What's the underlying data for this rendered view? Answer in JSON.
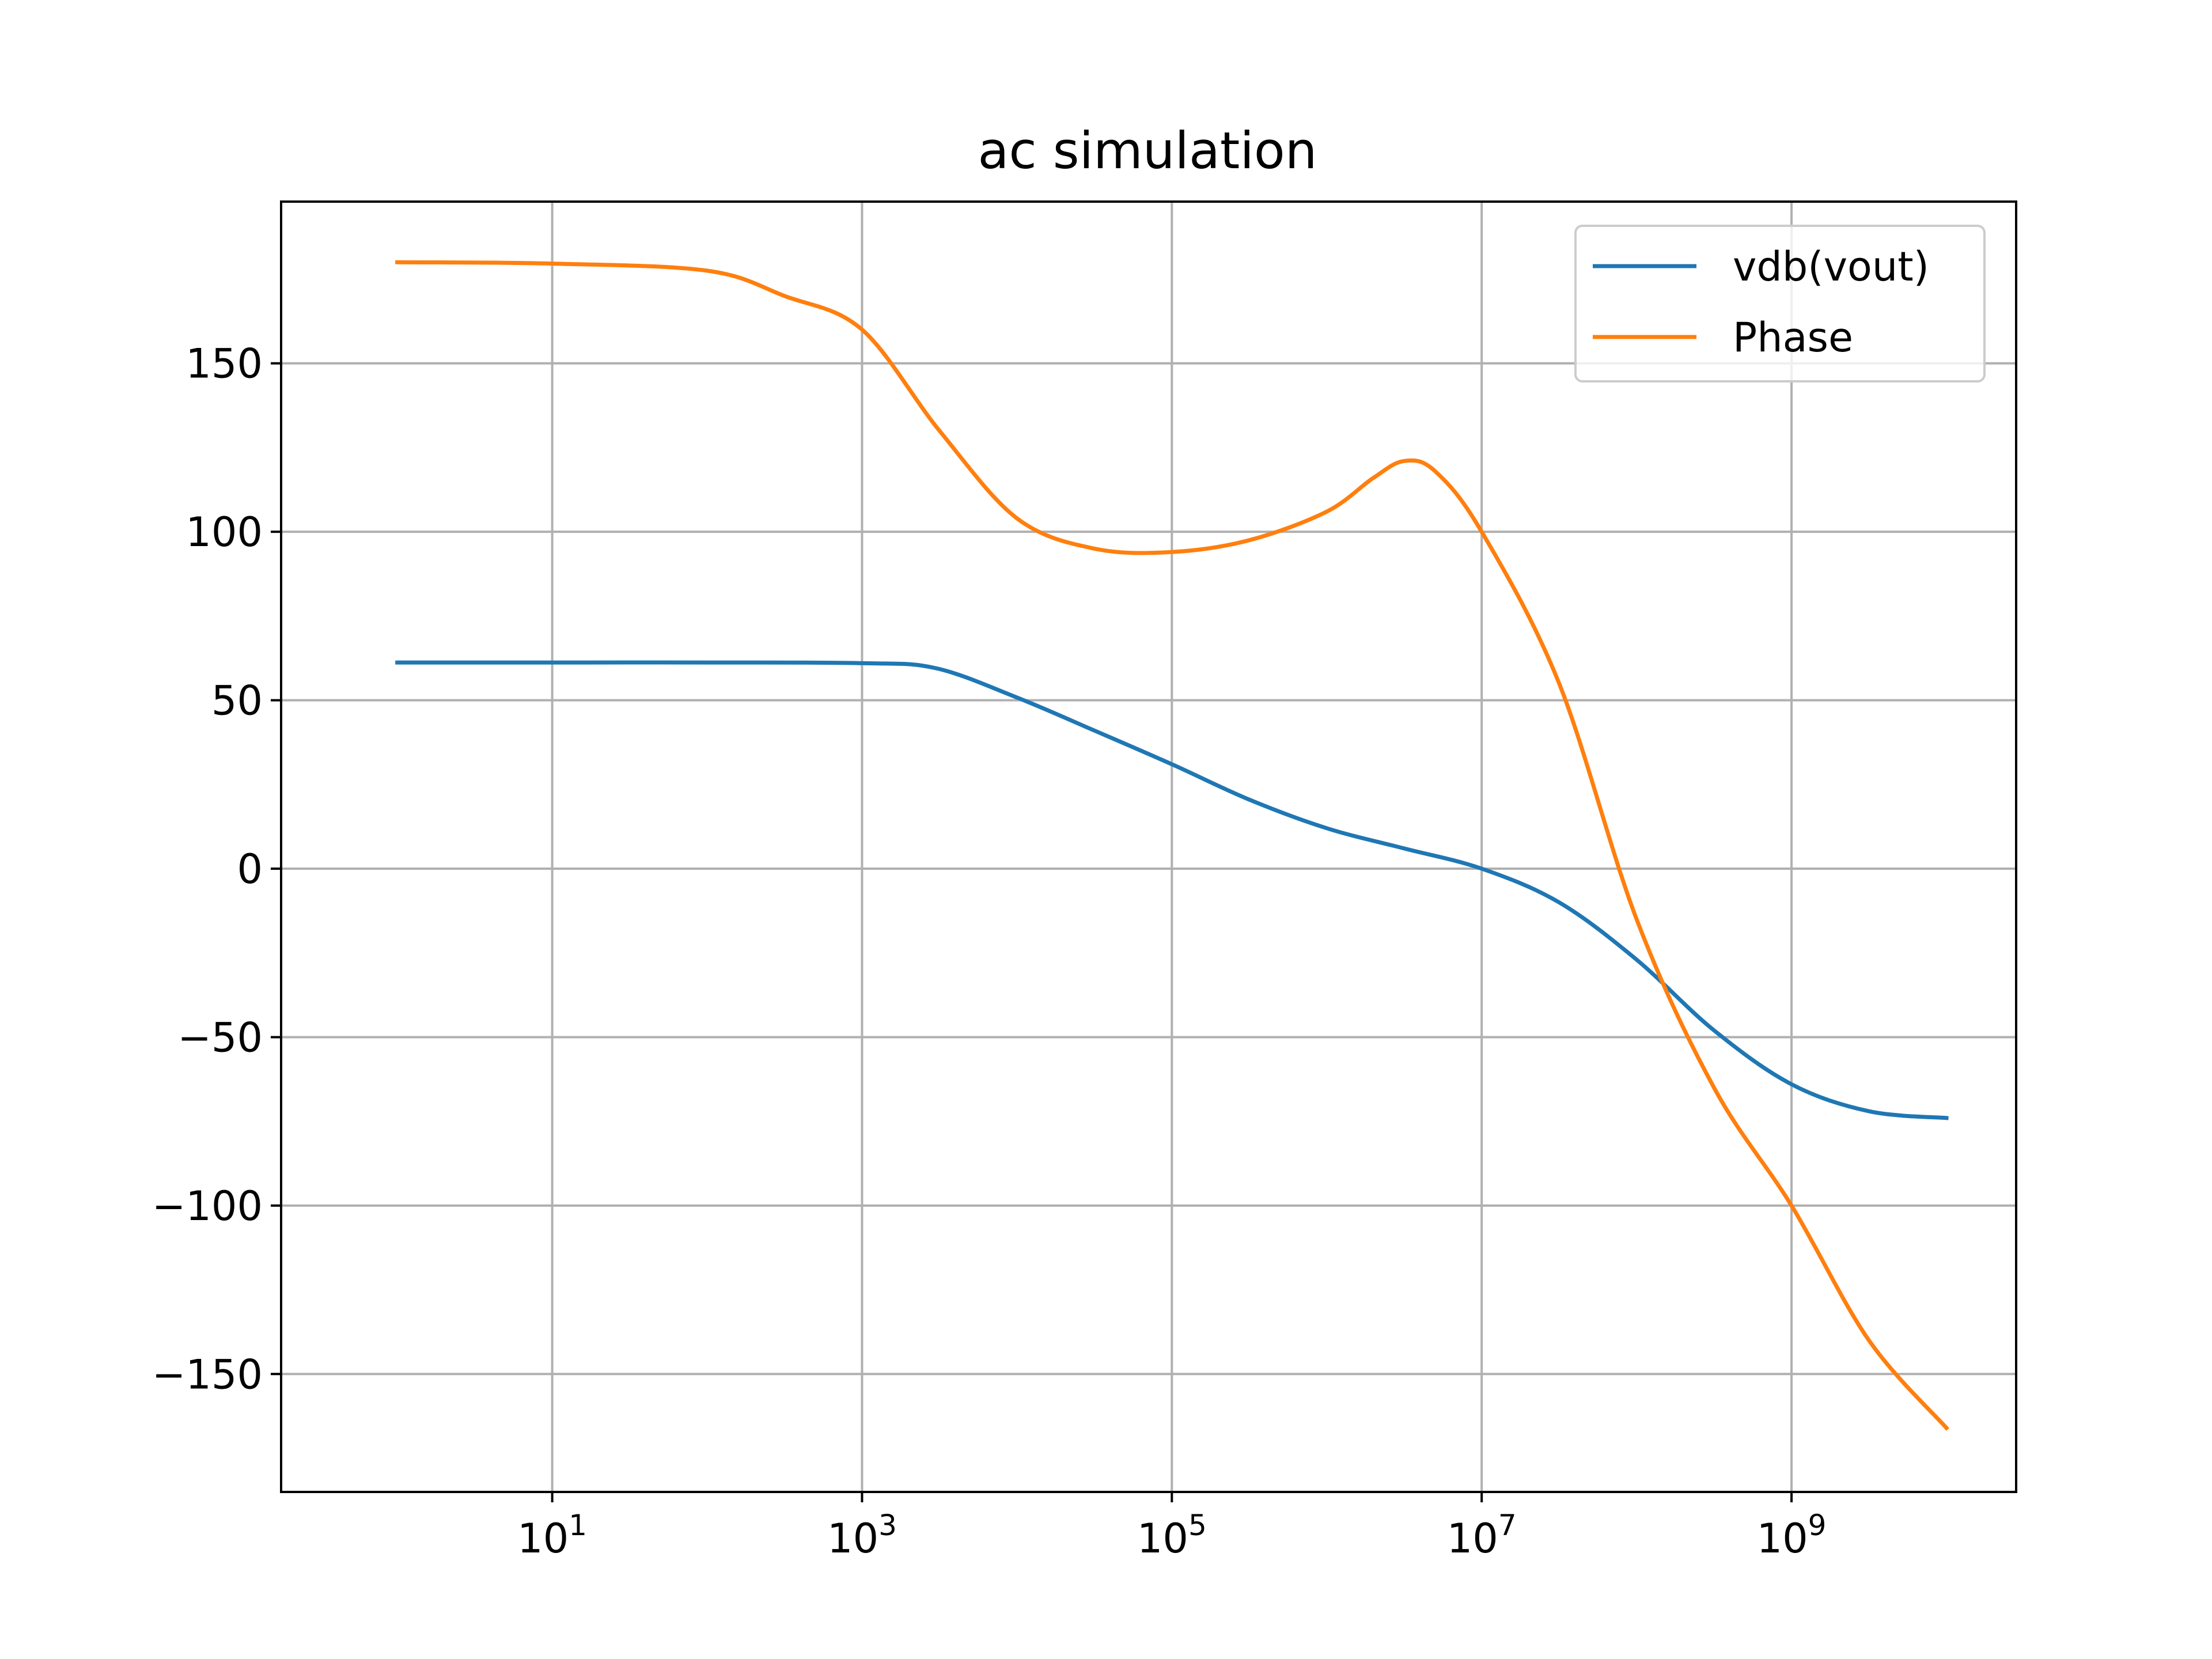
{
  "chart_data": {
    "type": "line",
    "title": "ac simulation",
    "xlabel": "",
    "ylabel": "",
    "x_scale": "log",
    "x_range_log10": [
      -0.75,
      10.45
    ],
    "x_ticks": [
      {
        "base": "10",
        "exp": "1",
        "log10": 1
      },
      {
        "base": "10",
        "exp": "3",
        "log10": 3
      },
      {
        "base": "10",
        "exp": "5",
        "log10": 5
      },
      {
        "base": "10",
        "exp": "7",
        "log10": 7
      },
      {
        "base": "10",
        "exp": "9",
        "log10": 9
      }
    ],
    "ylim": [
      -185,
      198
    ],
    "y_ticks": [
      {
        "value": 150,
        "label": "150"
      },
      {
        "value": 100,
        "label": "100"
      },
      {
        "value": 50,
        "label": "50"
      },
      {
        "value": 0,
        "label": "0"
      },
      {
        "value": -50,
        "label": "−50"
      },
      {
        "value": -100,
        "label": "−100"
      },
      {
        "value": -150,
        "label": "−150"
      }
    ],
    "grid": true,
    "legend_position": "top-right",
    "series": [
      {
        "name": "vdb(vout)",
        "color": "#1f77b4",
        "points": [
          [
            1,
            61.2
          ],
          [
            10,
            61.2
          ],
          [
            100,
            61.2
          ],
          [
            1000,
            61.0
          ],
          [
            3000,
            59.5
          ],
          [
            10000,
            50.8
          ],
          [
            31600,
            41
          ],
          [
            100000,
            31
          ],
          [
            316000,
            20.5
          ],
          [
            1000000,
            12
          ],
          [
            3160000,
            6
          ],
          [
            10000000,
            0
          ],
          [
            31600000,
            -10
          ],
          [
            100000000,
            -27
          ],
          [
            316000000,
            -48
          ],
          [
            1000000000,
            -64
          ],
          [
            3160000000,
            -72
          ],
          [
            10000000000,
            -74
          ]
        ]
      },
      {
        "name": "Phase",
        "color": "#ff7f0e",
        "points": [
          [
            1,
            180
          ],
          [
            10,
            179.6
          ],
          [
            100,
            177.5
          ],
          [
            316,
            170
          ],
          [
            1000,
            160
          ],
          [
            3160,
            130
          ],
          [
            10000,
            104
          ],
          [
            31600,
            95
          ],
          [
            100000,
            94
          ],
          [
            316000,
            97.5
          ],
          [
            1000000,
            106
          ],
          [
            2000000,
            116
          ],
          [
            3160000,
            121
          ],
          [
            5000000,
            118
          ],
          [
            10000000,
            100
          ],
          [
            31600000,
            55
          ],
          [
            100000000,
            -15
          ],
          [
            316000000,
            -65
          ],
          [
            1000000000,
            -100
          ],
          [
            3160000000,
            -140
          ],
          [
            10000000000,
            -166
          ]
        ]
      }
    ]
  }
}
